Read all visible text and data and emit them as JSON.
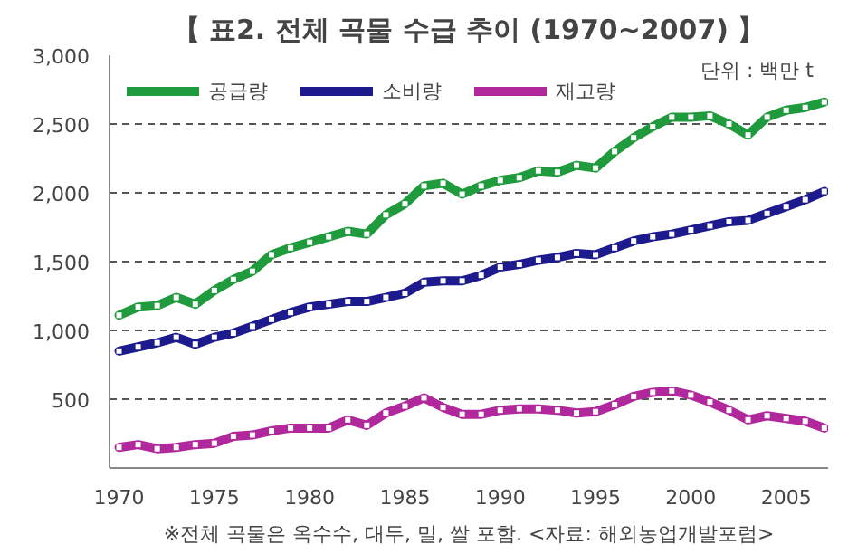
{
  "chart_data": {
    "type": "line",
    "title": "【 표2. 전체 곡물 수급 추이 (1970~2007) 】",
    "annotations": [
      "단위 : 백만 t",
      "※전체 곡물은 옥수수, 대두, 밀, 쌀 포함. <자료: 해외농업개발포럼>"
    ],
    "x": [
      1970,
      1971,
      1972,
      1973,
      1974,
      1975,
      1976,
      1977,
      1978,
      1979,
      1980,
      1981,
      1982,
      1983,
      1984,
      1985,
      1986,
      1987,
      1988,
      1989,
      1990,
      1991,
      1992,
      1993,
      1994,
      1995,
      1996,
      1997,
      1998,
      1999,
      2000,
      2001,
      2002,
      2003,
      2004,
      2005,
      2006,
      2007
    ],
    "series": [
      {
        "name": "공급량",
        "color": "#1f9a3c",
        "values": [
          1110,
          1170,
          1180,
          1240,
          1190,
          1290,
          1370,
          1430,
          1550,
          1600,
          1640,
          1680,
          1720,
          1700,
          1840,
          1920,
          2050,
          2070,
          1990,
          2050,
          2090,
          2110,
          2160,
          2150,
          2200,
          2180,
          2300,
          2400,
          2480,
          2550,
          2550,
          2560,
          2500,
          2420,
          2550,
          2600,
          2620,
          2660
        ]
      },
      {
        "name": "소비량",
        "color": "#1c1a8c",
        "values": [
          850,
          880,
          910,
          950,
          900,
          950,
          980,
          1030,
          1080,
          1130,
          1170,
          1190,
          1210,
          1210,
          1240,
          1270,
          1350,
          1360,
          1360,
          1400,
          1460,
          1480,
          1510,
          1530,
          1560,
          1550,
          1600,
          1650,
          1680,
          1700,
          1730,
          1760,
          1790,
          1800,
          1850,
          1900,
          1950,
          2010
        ]
      },
      {
        "name": "재고량",
        "color": "#b0289c",
        "values": [
          150,
          170,
          140,
          150,
          170,
          180,
          230,
          240,
          270,
          290,
          290,
          290,
          350,
          310,
          400,
          450,
          510,
          440,
          390,
          390,
          420,
          430,
          430,
          420,
          400,
          410,
          460,
          520,
          550,
          560,
          530,
          480,
          420,
          350,
          380,
          360,
          340,
          290
        ]
      }
    ],
    "xlim": [
      1969.5,
      2007.2
    ],
    "ylim": [
      0,
      3000
    ],
    "xticks": [
      1970,
      1975,
      1980,
      1985,
      1990,
      1995,
      2000,
      2005
    ],
    "yticks": [
      {
        "value": 500,
        "label": "500"
      },
      {
        "value": 1000,
        "label": "1,000"
      },
      {
        "value": 1500,
        "label": "1,500"
      },
      {
        "value": 2000,
        "label": "2,000"
      },
      {
        "value": 2500,
        "label": "2,500"
      },
      {
        "value": 3000,
        "label": "3,000"
      }
    ],
    "grid": "y",
    "legend": "top left",
    "marker": "square",
    "line_style": "solid"
  }
}
